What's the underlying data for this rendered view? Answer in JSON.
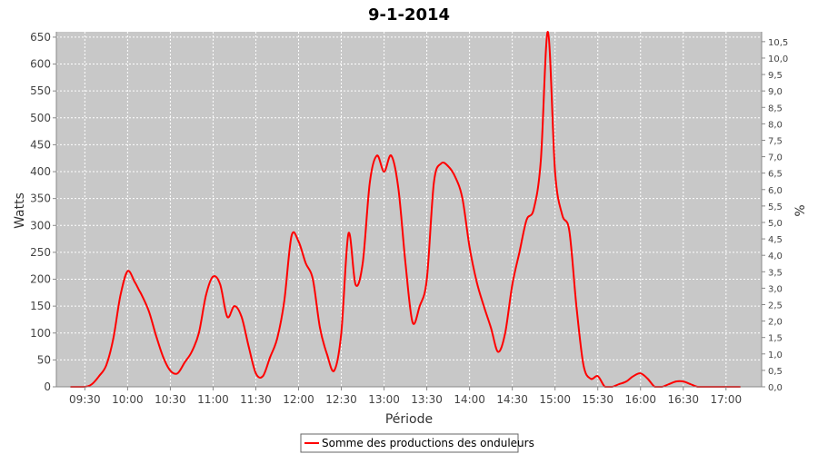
{
  "chart_data": {
    "type": "line",
    "title": "9-1-2014",
    "xlabel": "Période",
    "ylabel": "Watts",
    "y2label": "%",
    "ylim": [
      0,
      660
    ],
    "y2lim": [
      0,
      10.8
    ],
    "xlim": [
      "09:10",
      "17:25"
    ],
    "grid": true,
    "legend": "bottom",
    "colors": {
      "series": "#ff0000",
      "plot_bg": "#c8c8c8",
      "grid": "#ffffff"
    },
    "x_ticks": [
      "09:30",
      "10:00",
      "10:30",
      "11:00",
      "11:30",
      "12:00",
      "12:30",
      "13:00",
      "13:30",
      "14:00",
      "14:30",
      "15:00",
      "15:30",
      "16:00",
      "16:30",
      "17:00"
    ],
    "y_ticks": [
      0,
      50,
      100,
      150,
      200,
      250,
      300,
      350,
      400,
      450,
      500,
      550,
      600,
      650
    ],
    "y2_ticks": [
      "0,0",
      "0,5",
      "1,0",
      "1,5",
      "2,0",
      "2,5",
      "3,0",
      "3,5",
      "4,0",
      "4,5",
      "5,0",
      "5,5",
      "6,0",
      "6,5",
      "7,0",
      "7,5",
      "8,0",
      "8,5",
      "9,0",
      "9,5",
      "10,0",
      "10,5"
    ],
    "series": [
      {
        "name": "Somme des productions des onduleurs",
        "x": [
          "09:20",
          "09:30",
          "09:35",
          "09:40",
          "09:45",
          "09:50",
          "09:55",
          "10:00",
          "10:05",
          "10:08",
          "10:10",
          "10:15",
          "10:20",
          "10:25",
          "10:30",
          "10:35",
          "10:40",
          "10:45",
          "10:50",
          "10:55",
          "11:00",
          "11:05",
          "11:10",
          "11:15",
          "11:20",
          "11:25",
          "11:30",
          "11:35",
          "11:40",
          "11:45",
          "11:50",
          "11:55",
          "12:00",
          "12:05",
          "12:10",
          "12:15",
          "12:20",
          "12:25",
          "12:30",
          "12:35",
          "12:40",
          "12:45",
          "12:50",
          "12:55",
          "13:00",
          "13:05",
          "13:10",
          "13:15",
          "13:20",
          "13:25",
          "13:30",
          "13:35",
          "13:40",
          "13:45",
          "13:50",
          "13:55",
          "14:00",
          "14:05",
          "14:10",
          "14:15",
          "14:20",
          "14:25",
          "14:30",
          "14:35",
          "14:40",
          "14:45",
          "14:50",
          "14:55",
          "15:00",
          "15:05",
          "15:10",
          "15:15",
          "15:20",
          "15:25",
          "15:30",
          "15:35",
          "15:40",
          "15:45",
          "15:50",
          "15:55",
          "16:00",
          "16:05",
          "16:10",
          "16:15",
          "16:20",
          "16:25",
          "16:30",
          "16:35",
          "16:40",
          "16:45",
          "16:50",
          "16:55",
          "17:00",
          "17:05",
          "17:10"
        ],
        "values": [
          0,
          0,
          5,
          20,
          40,
          90,
          170,
          215,
          195,
          180,
          170,
          140,
          95,
          55,
          30,
          25,
          45,
          65,
          100,
          170,
          205,
          190,
          130,
          150,
          130,
          75,
          25,
          20,
          55,
          90,
          160,
          280,
          270,
          230,
          200,
          110,
          60,
          30,
          100,
          285,
          190,
          230,
          380,
          430,
          400,
          430,
          370,
          230,
          120,
          150,
          200,
          380,
          415,
          410,
          390,
          350,
          260,
          195,
          150,
          110,
          65,
          100,
          190,
          250,
          310,
          330,
          420,
          660,
          400,
          320,
          290,
          150,
          40,
          15,
          20,
          0,
          0,
          5,
          10,
          20,
          25,
          15,
          0,
          0,
          5,
          10,
          10,
          5,
          0,
          0,
          0,
          0,
          0,
          0,
          0
        ]
      }
    ]
  }
}
